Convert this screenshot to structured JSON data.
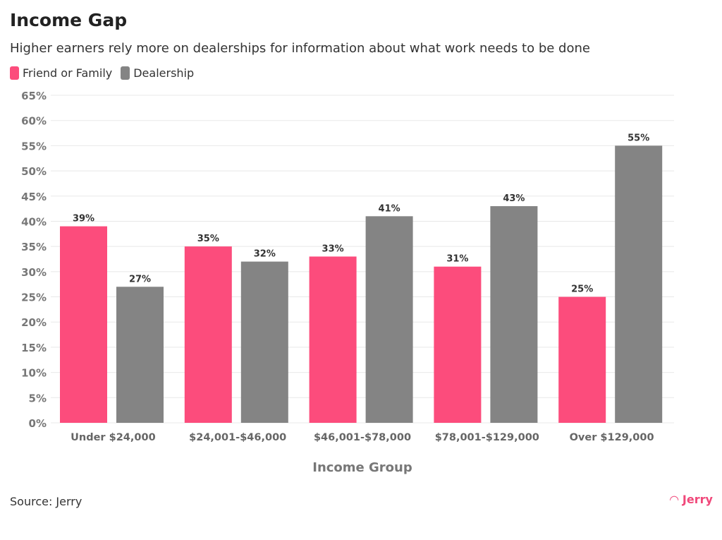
{
  "chart_data": {
    "type": "bar",
    "title": "Income Gap",
    "subtitle": "Higher earners rely more on dealerships for information about what work needs to be done",
    "xlabel": "Income Group",
    "ylabel": "",
    "ylim": [
      0,
      65
    ],
    "yticks": [
      "0%",
      "5%",
      "10%",
      "15%",
      "20%",
      "25%",
      "30%",
      "35%",
      "40%",
      "45%",
      "50%",
      "55%",
      "60%",
      "65%"
    ],
    "grid": true,
    "legend_placement": "top-left",
    "categories": [
      "Under $24,000",
      "$24,001-$46,000",
      "$46,001-$78,000",
      "$78,001-$129,000",
      "Over $129,000"
    ],
    "series": [
      {
        "name": "Friend or Family",
        "color": "#fc4c7c",
        "values": [
          39,
          35,
          33,
          31,
          25
        ],
        "labels": [
          "39%",
          "35%",
          "33%",
          "31%",
          "25%"
        ]
      },
      {
        "name": "Dealership",
        "color": "#848484",
        "values": [
          27,
          32,
          41,
          43,
          55
        ],
        "labels": [
          "27%",
          "32%",
          "41%",
          "43%",
          "55%"
        ]
      }
    ],
    "source": "Source: Jerry"
  },
  "logo": {
    "text": "Jerry",
    "color": "#f0487a"
  }
}
